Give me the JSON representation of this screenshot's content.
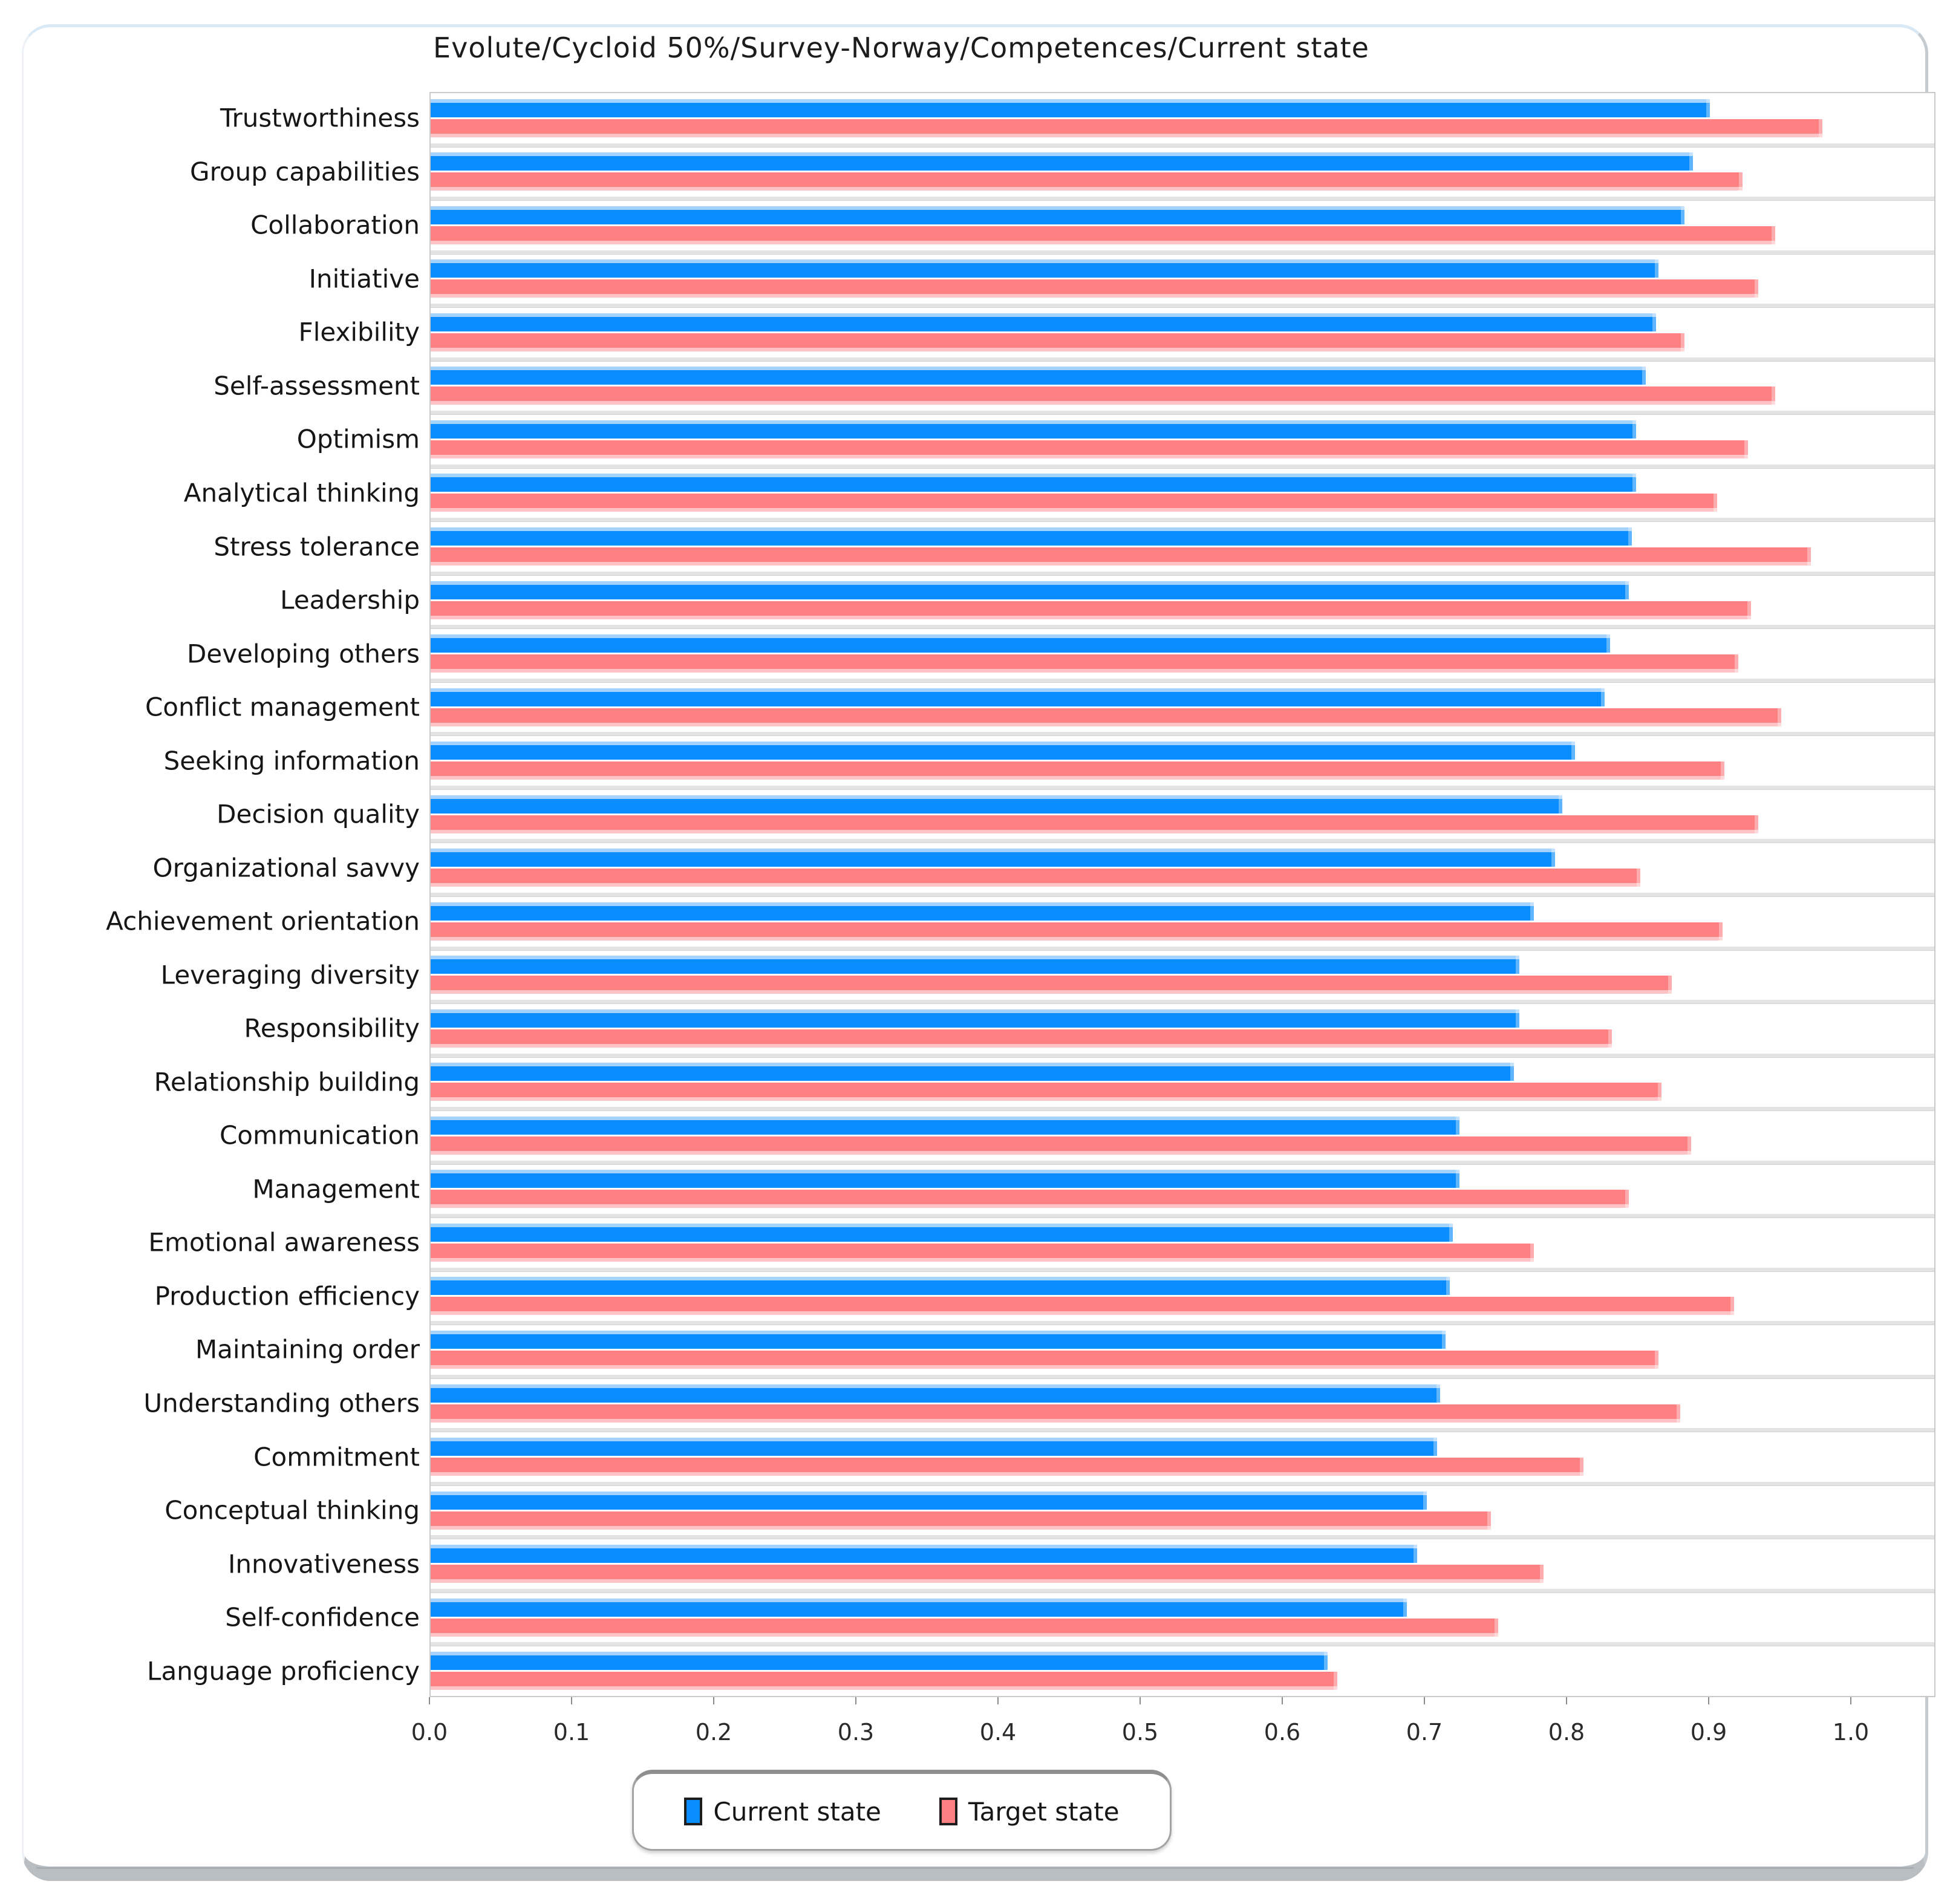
{
  "page": {
    "title": "Evolute/Cycloid 50%/Survey-Norway/Competences/Current state"
  },
  "chart_data": {
    "type": "bar",
    "orientation": "horizontal",
    "title": "Evolute/Cycloid 50%/Survey-Norway/Competences/Current state",
    "categories": [
      "Trustworthiness",
      "Group capabilities",
      "Collaboration",
      "Initiative",
      "Flexibility",
      "Self-assessment",
      "Optimism",
      "Analytical thinking",
      "Stress tolerance",
      "Leadership",
      "Developing others",
      "Conflict management",
      "Seeking information",
      "Decision quality",
      "Organizational savvy",
      "Achievement orientation",
      "Leveraging diversity",
      "Responsibility",
      "Relationship building",
      "Communication",
      "Management",
      "Emotional awareness",
      "Production efficiency",
      "Maintaining order",
      "Understanding others",
      "Commitment",
      "Conceptual thinking",
      "Innovativeness",
      "Self-confidence",
      "Language proficiency"
    ],
    "series": [
      {
        "name": "Current state",
        "color": "#0a8eff",
        "values": [
          0.9,
          0.888,
          0.882,
          0.864,
          0.862,
          0.855,
          0.848,
          0.848,
          0.845,
          0.843,
          0.83,
          0.826,
          0.805,
          0.796,
          0.791,
          0.776,
          0.766,
          0.766,
          0.762,
          0.724,
          0.724,
          0.719,
          0.717,
          0.714,
          0.71,
          0.708,
          0.701,
          0.694,
          0.687,
          0.631
        ]
      },
      {
        "name": "Target state",
        "color": "#ff8083",
        "values": [
          0.979,
          0.923,
          0.946,
          0.934,
          0.882,
          0.946,
          0.927,
          0.905,
          0.971,
          0.929,
          0.92,
          0.95,
          0.91,
          0.934,
          0.851,
          0.909,
          0.873,
          0.831,
          0.866,
          0.887,
          0.843,
          0.776,
          0.917,
          0.864,
          0.879,
          0.811,
          0.746,
          0.783,
          0.751,
          0.638
        ]
      }
    ],
    "xlim": [
      0,
      1
    ],
    "x_ticks": [
      "0.0",
      "0.1",
      "0.2",
      "0.3",
      "0.4",
      "0.5",
      "0.6",
      "0.7",
      "0.8",
      "0.9",
      "1.0"
    ],
    "grid": false,
    "legend_position": "bottom"
  },
  "colors": {
    "current_bar": "#0a8eff",
    "current_bar_highlight": "#a5d3ff",
    "target_bar": "#ff8083",
    "target_bar_highlight": "#ffc3c5",
    "plot_border": "#c9c9c9",
    "row_divider": "#e3e3e3",
    "panel_edge_top": "#d9e9f6",
    "panel_edge_bottom": "#b9bec3"
  }
}
